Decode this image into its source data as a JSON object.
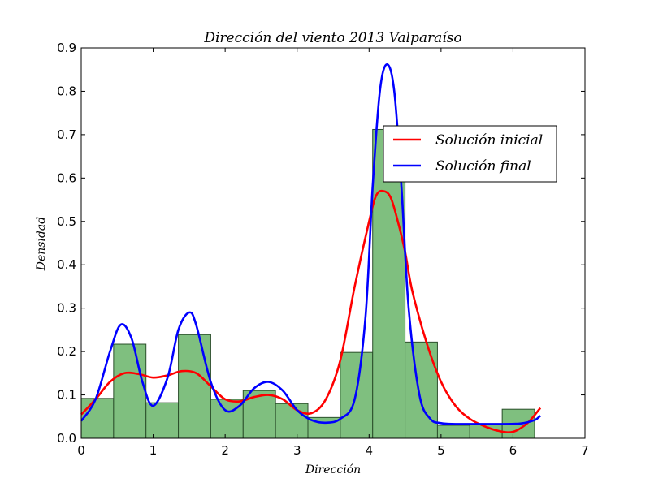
{
  "chart_data": {
    "type": "bar",
    "title": "Dirección del viento 2013 Valparaíso",
    "xlabel": "Dirección",
    "ylabel": "Densidad",
    "xlim": [
      0,
      7
    ],
    "ylim": [
      0,
      0.9
    ],
    "xticks": [
      0,
      1,
      2,
      3,
      4,
      5,
      6,
      7
    ],
    "yticks": [
      0.0,
      0.1,
      0.2,
      0.3,
      0.4,
      0.5,
      0.6,
      0.7,
      0.8,
      0.9
    ],
    "xtick_labels": [
      "0",
      "1",
      "2",
      "3",
      "4",
      "5",
      "6",
      "7"
    ],
    "ytick_labels": [
      "0.0",
      "0.1",
      "0.2",
      "0.3",
      "0.4",
      "0.5",
      "0.6",
      "0.7",
      "0.8",
      "0.9"
    ],
    "legend_position": "upper-right",
    "grid": false,
    "histogram": {
      "color": "#7fbf7f",
      "edgecolor": "#2b4f2b",
      "bins": [
        {
          "x0": 0.0,
          "x1": 0.45,
          "density": 0.092
        },
        {
          "x0": 0.45,
          "x1": 0.9,
          "density": 0.217
        },
        {
          "x0": 0.9,
          "x1": 1.35,
          "density": 0.082
        },
        {
          "x0": 1.35,
          "x1": 1.8,
          "density": 0.239
        },
        {
          "x0": 1.8,
          "x1": 2.25,
          "density": 0.09
        },
        {
          "x0": 2.25,
          "x1": 2.7,
          "density": 0.11
        },
        {
          "x0": 2.7,
          "x1": 3.15,
          "density": 0.08
        },
        {
          "x0": 3.15,
          "x1": 3.6,
          "density": 0.048
        },
        {
          "x0": 3.6,
          "x1": 4.05,
          "density": 0.198
        },
        {
          "x0": 4.05,
          "x1": 4.5,
          "density": 0.712
        },
        {
          "x0": 4.5,
          "x1": 4.95,
          "density": 0.222
        },
        {
          "x0": 4.95,
          "x1": 5.4,
          "density": 0.03
        },
        {
          "x0": 5.4,
          "x1": 5.85,
          "density": 0.032
        },
        {
          "x0": 5.85,
          "x1": 6.3,
          "density": 0.067
        }
      ]
    },
    "series": [
      {
        "name": "Solución inicial",
        "color": "#ff0000",
        "x": [
          0.0,
          0.2,
          0.4,
          0.6,
          0.8,
          1.0,
          1.2,
          1.4,
          1.6,
          1.8,
          2.0,
          2.2,
          2.4,
          2.6,
          2.8,
          3.0,
          3.2,
          3.4,
          3.6,
          3.8,
          4.0,
          4.1,
          4.2,
          4.3,
          4.4,
          4.5,
          4.6,
          4.8,
          5.0,
          5.2,
          5.4,
          5.6,
          5.8,
          6.0,
          6.2,
          6.38
        ],
        "y": [
          0.055,
          0.09,
          0.13,
          0.15,
          0.148,
          0.14,
          0.145,
          0.155,
          0.15,
          0.12,
          0.09,
          0.085,
          0.095,
          0.1,
          0.09,
          0.065,
          0.058,
          0.09,
          0.18,
          0.35,
          0.5,
          0.56,
          0.57,
          0.555,
          0.5,
          0.43,
          0.34,
          0.22,
          0.13,
          0.075,
          0.045,
          0.028,
          0.017,
          0.015,
          0.035,
          0.07
        ]
      },
      {
        "name": "Solución final",
        "color": "#0000ff",
        "x": [
          0.0,
          0.2,
          0.4,
          0.55,
          0.7,
          0.85,
          1.0,
          1.2,
          1.35,
          1.5,
          1.6,
          1.8,
          2.0,
          2.2,
          2.4,
          2.6,
          2.8,
          3.0,
          3.2,
          3.4,
          3.6,
          3.8,
          3.95,
          4.05,
          4.15,
          4.25,
          4.35,
          4.45,
          4.55,
          4.7,
          4.85,
          5.0,
          5.2,
          5.5,
          5.8,
          6.1,
          6.3,
          6.38
        ],
        "y": [
          0.04,
          0.09,
          0.2,
          0.262,
          0.23,
          0.13,
          0.075,
          0.14,
          0.25,
          0.29,
          0.26,
          0.13,
          0.065,
          0.075,
          0.115,
          0.13,
          0.11,
          0.065,
          0.042,
          0.036,
          0.045,
          0.09,
          0.28,
          0.58,
          0.8,
          0.862,
          0.8,
          0.58,
          0.3,
          0.1,
          0.045,
          0.035,
          0.033,
          0.033,
          0.033,
          0.034,
          0.042,
          0.052
        ]
      }
    ]
  }
}
